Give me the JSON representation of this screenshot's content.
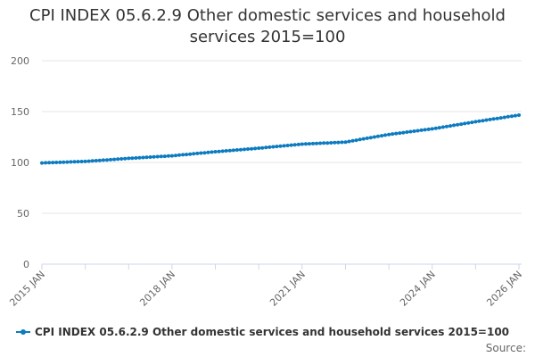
{
  "title": "CPI INDEX 05.6.2.9 Other domestic services and household services 2015=100",
  "source_label": "Source:",
  "colors": {
    "series": "#0c7bc0",
    "grid": "#e6e6e6",
    "axis": "#ccd6eb",
    "text": "#666666"
  },
  "chart_data": {
    "type": "line",
    "title": "CPI INDEX 05.6.2.9 Other domestic services and household services 2015=100",
    "xlabel": "",
    "ylabel": "",
    "ylim": [
      0,
      200
    ],
    "yticks": [
      0,
      50,
      100,
      150,
      200
    ],
    "xlim": [
      "2015 JAN",
      "2026 JAN"
    ],
    "xtick_labels": [
      "2015 JAN",
      "2018 JAN",
      "2021 JAN",
      "2024 JAN",
      "2026 JAN"
    ],
    "xtick_months": [
      "2015 JAN",
      "2016 JAN",
      "2017 JAN",
      "2018 JAN",
      "2019 JAN",
      "2020 JAN",
      "2021 JAN",
      "2022 JAN",
      "2023 JAN",
      "2024 JAN",
      "2025 JAN",
      "2026 JAN"
    ],
    "grid": true,
    "legend_position": "bottom",
    "series": [
      {
        "name": "CPI INDEX 05.6.2.9 Other domestic services and household services 2015=100",
        "frequency": "monthly",
        "start": "2015 JAN",
        "annual_points": [
          {
            "x": "2015 JAN",
            "y": 99.5
          },
          {
            "x": "2016 JAN",
            "y": 101.0
          },
          {
            "x": "2017 JAN",
            "y": 104.0
          },
          {
            "x": "2018 JAN",
            "y": 106.5
          },
          {
            "x": "2019 JAN",
            "y": 110.5
          },
          {
            "x": "2020 JAN",
            "y": 114.0
          },
          {
            "x": "2021 JAN",
            "y": 118.0
          },
          {
            "x": "2022 JAN",
            "y": 120.0
          },
          {
            "x": "2023 JAN",
            "y": 127.5
          },
          {
            "x": "2024 JAN",
            "y": 133.0
          },
          {
            "x": "2025 JAN",
            "y": 140.0
          },
          {
            "x": "2026 JAN",
            "y": 146.5
          }
        ]
      }
    ]
  }
}
